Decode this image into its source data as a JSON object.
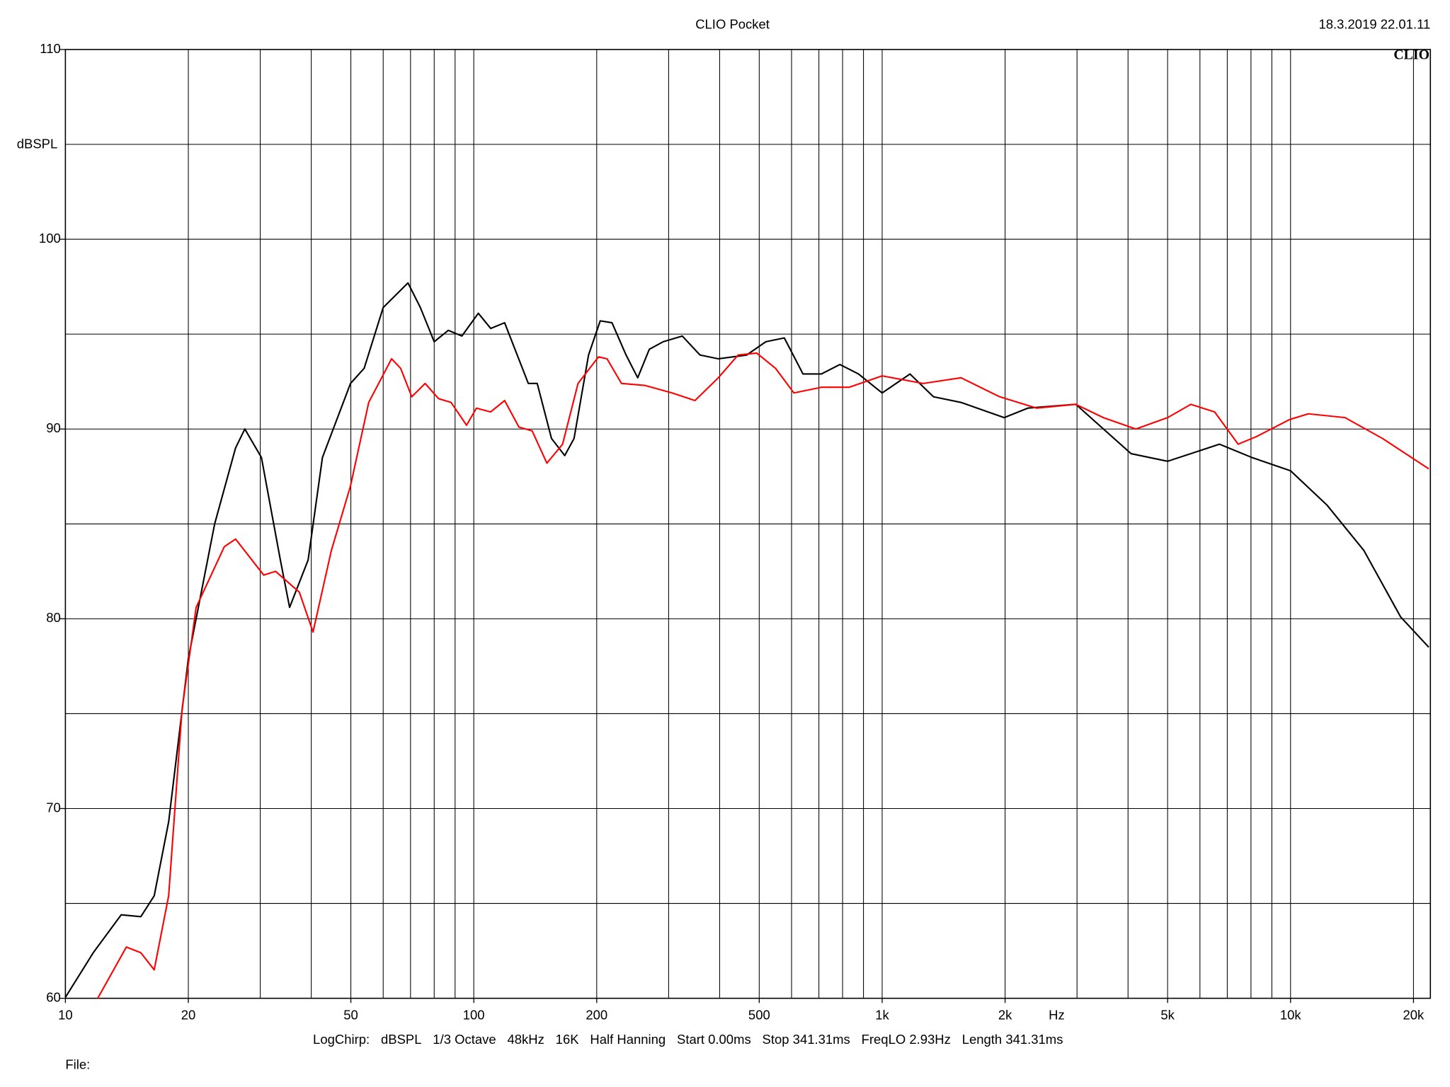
{
  "chart_data": {
    "type": "line",
    "title": "CLIO Pocket",
    "timestamp": "18.3.2019 22.01.11",
    "logo": "CLIO",
    "ylabel": "dBSPL",
    "xlabel": "Hz",
    "footer": [
      "LogChirp:",
      "dBSPL",
      "1/3 Octave",
      "48kHz",
      "16K",
      "Half Hanning",
      "Start 0.00ms",
      "Stop 341.31ms",
      "FreqLO 2.93Hz",
      "Length 341.31ms"
    ],
    "file_label": "File:",
    "xscale": "log",
    "xlim": [
      10,
      22000
    ],
    "ylim": [
      60,
      110
    ],
    "xticks": [
      10,
      20,
      50,
      100,
      200,
      500,
      {
        "value": 1000,
        "label": "1k"
      },
      {
        "value": 2000,
        "label": "2k"
      },
      {
        "value": 5000,
        "label": "5k"
      },
      {
        "value": 10000,
        "label": "10k"
      },
      {
        "value": 20000,
        "label": "20k"
      }
    ],
    "xgrid": [
      20,
      30,
      40,
      50,
      60,
      70,
      80,
      90,
      100,
      200,
      300,
      400,
      500,
      600,
      700,
      800,
      900,
      1000,
      2000,
      3000,
      4000,
      5000,
      6000,
      7000,
      8000,
      9000,
      10000,
      20000
    ],
    "yticks": [
      60,
      70,
      80,
      90,
      100,
      110
    ],
    "ygrid": [
      65,
      70,
      75,
      80,
      85,
      90,
      95,
      100,
      105
    ],
    "grid": true,
    "series": [
      {
        "color": "#000000",
        "x": [
          10,
          11.7,
          13.7,
          15.3,
          16.5,
          17.9,
          20,
          23.2,
          26.1,
          27.5,
          30.2,
          33.6,
          35.4,
          39.3,
          42.6,
          49.9,
          53.9,
          60,
          69,
          74,
          80,
          86.6,
          93.5,
          102.6,
          110,
          119,
          136,
          143,
          155,
          167,
          176,
          191,
          204,
          218,
          236,
          252,
          269,
          291,
          324,
          358,
          397,
          466,
          519,
          576,
          640,
          710,
          788,
          875,
          1000,
          1170,
          1335,
          1560,
          1990,
          2273,
          2980,
          4070,
          5000,
          6700,
          8040,
          10000,
          12270,
          15120,
          18600,
          21800
        ],
        "values": [
          60.05,
          62.4,
          64.4,
          64.3,
          65.4,
          69.3,
          77.9,
          85.0,
          89.0,
          90.0,
          88.5,
          83.1,
          80.6,
          83.1,
          88.5,
          92.4,
          93.2,
          96.4,
          97.7,
          96.4,
          94.6,
          95.2,
          94.9,
          96.1,
          95.3,
          95.6,
          92.4,
          92.4,
          89.5,
          88.6,
          89.5,
          93.9,
          95.7,
          95.6,
          93.9,
          92.7,
          94.2,
          94.6,
          94.9,
          93.9,
          93.7,
          93.9,
          94.6,
          94.8,
          92.9,
          92.9,
          93.4,
          92.9,
          91.9,
          92.9,
          91.7,
          91.4,
          90.6,
          91.1,
          91.3,
          88.7,
          88.3,
          89.2,
          88.5,
          87.8,
          86.0,
          83.6,
          80.1,
          78.5
        ]
      },
      {
        "color": "#ff0000",
        "x": [
          12.0,
          14.1,
          15.3,
          16.5,
          17.9,
          19.3,
          20.9,
          24.5,
          26.1,
          30.6,
          32.7,
          37.4,
          40.4,
          44.8,
          49.9,
          55.3,
          62.9,
          66.2,
          70.5,
          76,
          82,
          88,
          96,
          101.5,
          110,
          119,
          129,
          139,
          151,
          165,
          180,
          202,
          212,
          230,
          262,
          306,
          348,
          397,
          444,
          493,
          548,
          608,
          710,
          830,
          1000,
          1260,
          1560,
          1940,
          2390,
          2980,
          3480,
          4180,
          5000,
          5700,
          6520,
          7440,
          8250,
          9950,
          11060,
          13600,
          16800,
          21800
        ],
        "values": [
          60,
          62.7,
          62.4,
          61.5,
          65.4,
          75.2,
          80.6,
          83.8,
          84.2,
          82.3,
          82.5,
          81.4,
          79.3,
          83.6,
          87.0,
          91.4,
          93.7,
          93.2,
          91.7,
          92.4,
          91.6,
          91.4,
          90.2,
          91.1,
          90.9,
          91.5,
          90.1,
          89.9,
          88.2,
          89.2,
          92.4,
          93.8,
          93.7,
          92.4,
          92.3,
          91.9,
          91.5,
          92.7,
          93.9,
          94.0,
          93.2,
          91.9,
          92.2,
          92.2,
          92.8,
          92.4,
          92.7,
          91.7,
          91.1,
          91.3,
          90.6,
          90.0,
          90.6,
          91.3,
          90.9,
          89.2,
          89.6,
          90.5,
          90.8,
          90.6,
          89.5,
          87.9
        ]
      }
    ]
  }
}
